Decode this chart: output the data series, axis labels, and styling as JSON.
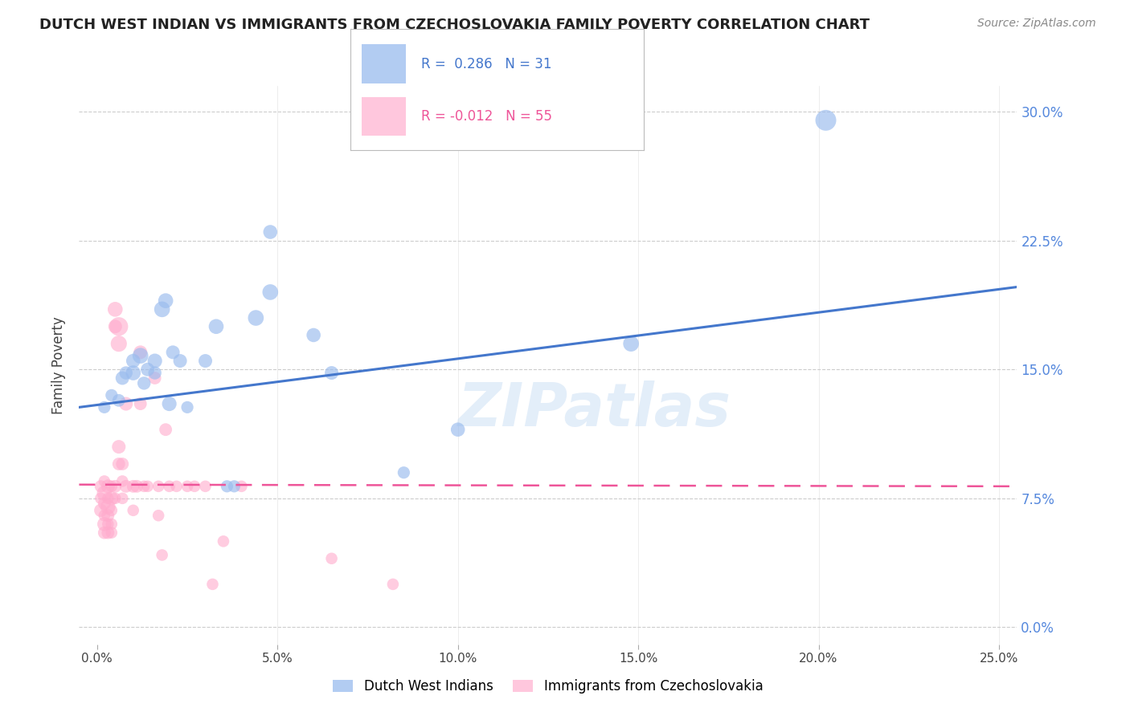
{
  "title": "DUTCH WEST INDIAN VS IMMIGRANTS FROM CZECHOSLOVAKIA FAMILY POVERTY CORRELATION CHART",
  "source": "Source: ZipAtlas.com",
  "ylabel": "Family Poverty",
  "ylabel_ticks": [
    "0.0%",
    "7.5%",
    "15.0%",
    "22.5%",
    "30.0%"
  ],
  "ylabel_vals": [
    0.0,
    0.075,
    0.15,
    0.225,
    0.3
  ],
  "xlabel_ticks": [
    "0.0%",
    "5.0%",
    "10.0%",
    "15.0%",
    "20.0%",
    "25.0%"
  ],
  "xlabel_vals": [
    0.0,
    0.05,
    0.1,
    0.15,
    0.2,
    0.25
  ],
  "xlim": [
    -0.005,
    0.255
  ],
  "ylim": [
    -0.01,
    0.315
  ],
  "blue_label": "Dutch West Indians",
  "pink_label": "Immigrants from Czechoslovakia",
  "blue_R": "0.286",
  "blue_N": "31",
  "pink_R": "-0.012",
  "pink_N": "55",
  "blue_color": "#99bbee",
  "pink_color": "#ffaacc",
  "blue_line_color": "#4477cc",
  "pink_line_color": "#ee5599",
  "watermark": "ZIPatlas",
  "blue_scatter": [
    [
      0.002,
      0.128
    ],
    [
      0.004,
      0.135
    ],
    [
      0.006,
      0.132
    ],
    [
      0.007,
      0.145
    ],
    [
      0.008,
      0.148
    ],
    [
      0.01,
      0.155
    ],
    [
      0.01,
      0.148
    ],
    [
      0.012,
      0.158
    ],
    [
      0.013,
      0.142
    ],
    [
      0.014,
      0.15
    ],
    [
      0.016,
      0.155
    ],
    [
      0.016,
      0.148
    ],
    [
      0.018,
      0.185
    ],
    [
      0.019,
      0.19
    ],
    [
      0.02,
      0.13
    ],
    [
      0.021,
      0.16
    ],
    [
      0.023,
      0.155
    ],
    [
      0.025,
      0.128
    ],
    [
      0.03,
      0.155
    ],
    [
      0.033,
      0.175
    ],
    [
      0.036,
      0.082
    ],
    [
      0.038,
      0.082
    ],
    [
      0.044,
      0.18
    ],
    [
      0.048,
      0.195
    ],
    [
      0.048,
      0.23
    ],
    [
      0.06,
      0.17
    ],
    [
      0.065,
      0.148
    ],
    [
      0.085,
      0.09
    ],
    [
      0.1,
      0.115
    ],
    [
      0.148,
      0.165
    ],
    [
      0.202,
      0.295
    ]
  ],
  "pink_scatter": [
    [
      0.001,
      0.082
    ],
    [
      0.001,
      0.075
    ],
    [
      0.001,
      0.068
    ],
    [
      0.002,
      0.085
    ],
    [
      0.002,
      0.078
    ],
    [
      0.002,
      0.072
    ],
    [
      0.002,
      0.065
    ],
    [
      0.002,
      0.06
    ],
    [
      0.002,
      0.055
    ],
    [
      0.003,
      0.082
    ],
    [
      0.003,
      0.075
    ],
    [
      0.003,
      0.07
    ],
    [
      0.003,
      0.065
    ],
    [
      0.003,
      0.06
    ],
    [
      0.003,
      0.055
    ],
    [
      0.004,
      0.082
    ],
    [
      0.004,
      0.075
    ],
    [
      0.004,
      0.068
    ],
    [
      0.004,
      0.06
    ],
    [
      0.004,
      0.055
    ],
    [
      0.005,
      0.185
    ],
    [
      0.005,
      0.175
    ],
    [
      0.005,
      0.082
    ],
    [
      0.005,
      0.075
    ],
    [
      0.006,
      0.175
    ],
    [
      0.006,
      0.165
    ],
    [
      0.006,
      0.105
    ],
    [
      0.006,
      0.095
    ],
    [
      0.007,
      0.095
    ],
    [
      0.007,
      0.085
    ],
    [
      0.007,
      0.075
    ],
    [
      0.008,
      0.13
    ],
    [
      0.008,
      0.082
    ],
    [
      0.01,
      0.082
    ],
    [
      0.01,
      0.068
    ],
    [
      0.011,
      0.082
    ],
    [
      0.012,
      0.16
    ],
    [
      0.012,
      0.13
    ],
    [
      0.013,
      0.082
    ],
    [
      0.014,
      0.082
    ],
    [
      0.016,
      0.145
    ],
    [
      0.017,
      0.082
    ],
    [
      0.017,
      0.065
    ],
    [
      0.018,
      0.042
    ],
    [
      0.019,
      0.115
    ],
    [
      0.02,
      0.082
    ],
    [
      0.022,
      0.082
    ],
    [
      0.025,
      0.082
    ],
    [
      0.027,
      0.082
    ],
    [
      0.03,
      0.082
    ],
    [
      0.032,
      0.025
    ],
    [
      0.035,
      0.05
    ],
    [
      0.04,
      0.082
    ],
    [
      0.065,
      0.04
    ],
    [
      0.082,
      0.025
    ]
  ],
  "blue_scatter_sizes": [
    120,
    120,
    130,
    150,
    140,
    160,
    180,
    200,
    140,
    150,
    170,
    140,
    200,
    180,
    170,
    150,
    150,
    120,
    150,
    180,
    120,
    120,
    200,
    200,
    160,
    160,
    150,
    120,
    160,
    200,
    350
  ],
  "pink_scatter_sizes": [
    120,
    110,
    140,
    110,
    180,
    130,
    110,
    160,
    130,
    150,
    110,
    180,
    130,
    110,
    130,
    110,
    150,
    110,
    110,
    110,
    180,
    150,
    130,
    110,
    280,
    210,
    150,
    130,
    130,
    110,
    110,
    150,
    130,
    130,
    110,
    130,
    150,
    130,
    110,
    110,
    130,
    110,
    110,
    110,
    130,
    110,
    110,
    110,
    110,
    110,
    110,
    110,
    110,
    110,
    110
  ]
}
